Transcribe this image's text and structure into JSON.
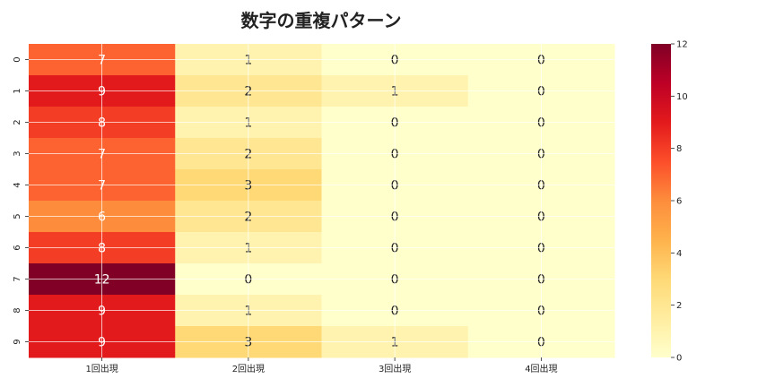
{
  "chart_data": {
    "type": "heatmap",
    "title": "数字の重複パターン",
    "xlabel": "",
    "ylabel": "",
    "columns": [
      "1回出現",
      "2回出現",
      "3回出現",
      "4回出現"
    ],
    "rows": [
      "0",
      "1",
      "2",
      "3",
      "4",
      "5",
      "6",
      "7",
      "8",
      "9"
    ],
    "values": [
      [
        7,
        1,
        0,
        0
      ],
      [
        9,
        2,
        1,
        0
      ],
      [
        8,
        1,
        0,
        0
      ],
      [
        7,
        2,
        0,
        0
      ],
      [
        7,
        3,
        0,
        0
      ],
      [
        6,
        2,
        0,
        0
      ],
      [
        8,
        1,
        0,
        0
      ],
      [
        12,
        0,
        0,
        0
      ],
      [
        9,
        1,
        0,
        0
      ],
      [
        9,
        3,
        1,
        0
      ]
    ],
    "colormap": "YlOrRd",
    "colorbar": {
      "min": 0,
      "max": 12,
      "ticks": [
        0,
        2,
        4,
        6,
        8,
        10,
        12
      ]
    },
    "grid": true
  }
}
